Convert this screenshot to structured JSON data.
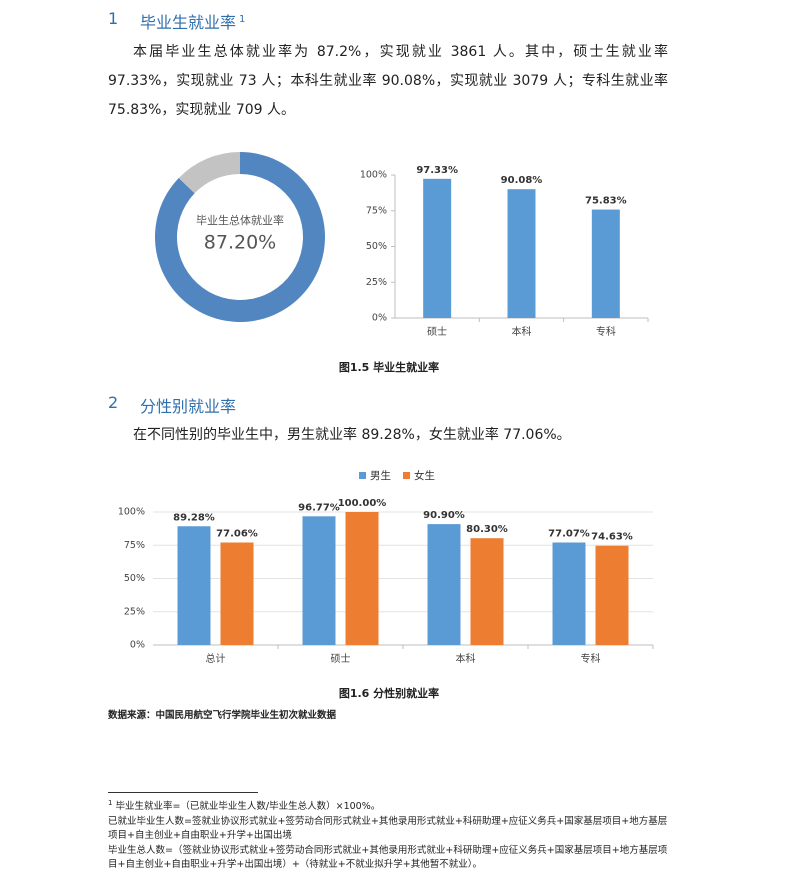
{
  "sections": [
    {
      "number": "1",
      "title": "毕业生就业率",
      "footnote_ref": "1",
      "paragraph": "本届毕业生总体就业率为 87.2%，实现就业 3861 人。其中，硕士生就业率 97.33%，实现就业 73 人；本科生就业率 90.08%，实现就业 3079 人；专科生就业率 75.83%，实现就业 709 人。"
    },
    {
      "number": "2",
      "title": "分性别就业率",
      "paragraph": "在不同性别的毕业生中，男生就业率 89.28%，女生就业率 77.06%。"
    }
  ],
  "captions": [
    "图1.5 毕业生就业率",
    "图1.6 分性别就业率"
  ],
  "source": "数据来源：中国民用航空飞行学院毕业生初次就业数据",
  "footnotes": [
    {
      "ref": "1",
      "text": "毕业生就业率=（已就业毕业生人数/毕业生总人数）×100%。"
    },
    {
      "text": "已就业毕业生人数=签就业协议形式就业+签劳动合同形式就业+其他录用形式就业+科研助理+应征义务兵+国家基层项目+地方基层项目+自主创业+自由职业+升学+出国出境"
    },
    {
      "text": "毕业生总人数=（签就业协议形式就业+签劳动合同形式就业+其他录用形式就业+科研助理+应征义务兵+国家基层项目+地方基层项目+自主创业+自由职业+升学+出国出境）+（待就业+不就业拟升学+其他暂不就业）。"
    }
  ],
  "chart_data": [
    {
      "type": "pie",
      "donut": true,
      "center_label": "毕业生总体就业率",
      "categories": [
        null,
        null
      ],
      "values": [
        87.2,
        12.8
      ],
      "value_labels": [
        "87.20%",
        null
      ],
      "colors": [
        "#5286c0",
        "#c3c3c3"
      ]
    },
    {
      "type": "bar",
      "categories": [
        "硕士",
        "本科",
        "专科"
      ],
      "values": [
        97.33,
        90.08,
        75.83
      ],
      "value_labels": [
        "97.33%",
        "90.08%",
        "75.83%"
      ],
      "color": "#5b9bd5",
      "ylim": [
        0,
        100
      ],
      "yticks": [
        {
          "value": 0,
          "label": "0%"
        },
        {
          "value": 25,
          "label": "25%"
        },
        {
          "value": 50,
          "label": "50%"
        },
        {
          "value": 75,
          "label": "75%"
        },
        {
          "value": 100,
          "label": "100%"
        }
      ],
      "grid": false
    },
    {
      "type": "bar",
      "categories": [
        "总计",
        "硕士",
        "本科",
        "专科"
      ],
      "legend": "top",
      "series": [
        {
          "name": "男生",
          "color": "#5b9bd5",
          "values": [
            89.28,
            96.77,
            90.9,
            77.07
          ],
          "value_labels": [
            "89.28%",
            "96.77%",
            "90.90%",
            "77.07%"
          ]
        },
        {
          "name": "女生",
          "color": "#ed7d31",
          "values": [
            77.06,
            100,
            80.3,
            74.63
          ],
          "value_labels": [
            "77.06%",
            "100.00%",
            "80.30%",
            "74.63%"
          ]
        }
      ],
      "ylim": [
        0,
        100
      ],
      "yticks": [
        {
          "value": 0,
          "label": "0%"
        },
        {
          "value": 25,
          "label": "25%"
        },
        {
          "value": 50,
          "label": "50%"
        },
        {
          "value": 75,
          "label": "75%"
        },
        {
          "value": 100,
          "label": "100%"
        }
      ],
      "grid": true
    }
  ]
}
